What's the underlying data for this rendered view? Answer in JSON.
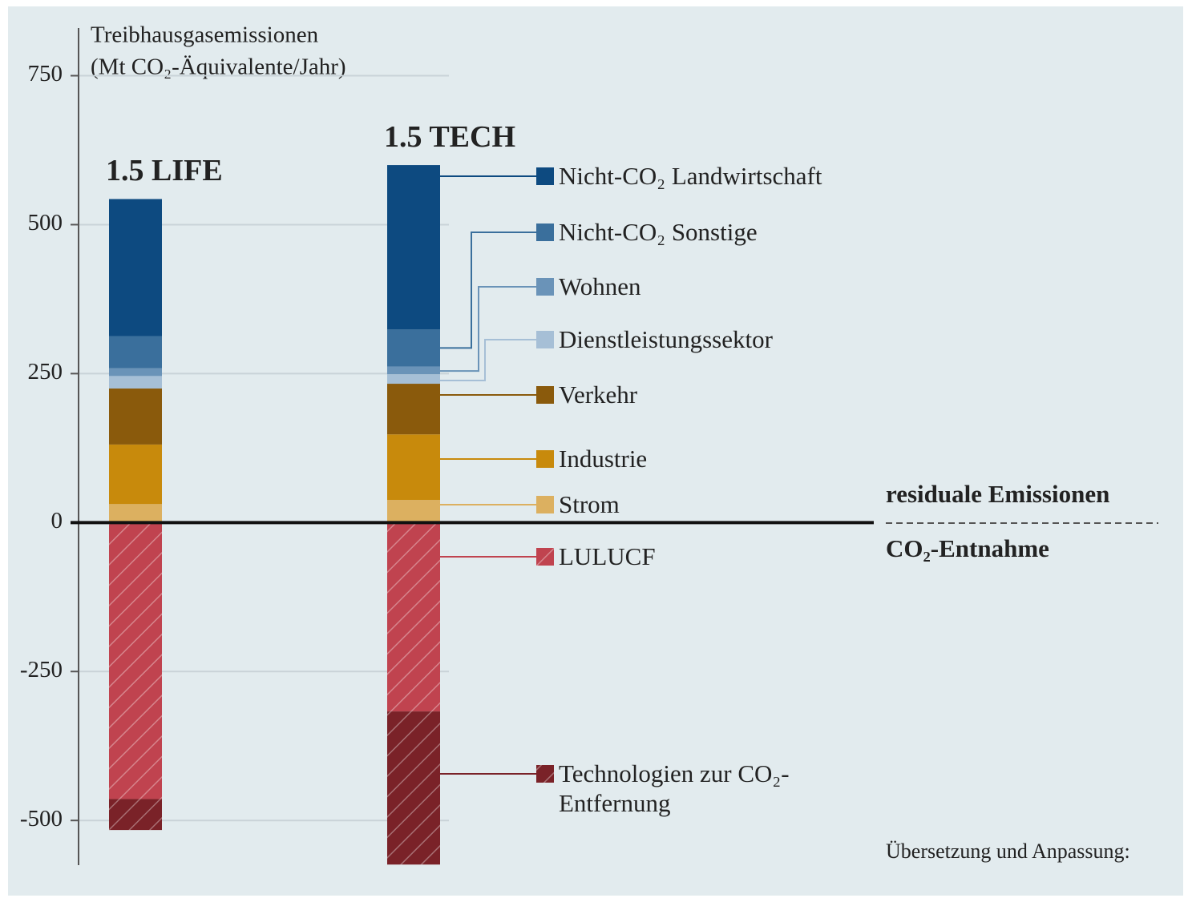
{
  "chart_data": {
    "type": "stacked-bar",
    "y_label_lines": [
      "Treibhausgasemissionen",
      "(Mt CO₂-Äquivalente/Jahr)"
    ],
    "categories": [
      "1.5 LIFE",
      "1.5 TECH"
    ],
    "series": [
      {
        "name": "Strom",
        "color": "#dcb060",
        "values": [
          31,
          38
        ]
      },
      {
        "name": "Industrie",
        "color": "#c88a0c",
        "values": [
          100,
          110
        ]
      },
      {
        "name": "Verkehr",
        "color": "#8a5a0c",
        "values": [
          94,
          85
        ]
      },
      {
        "name": "Dienstleistungssektor",
        "color": "#a6bfd6",
        "values": [
          21,
          16
        ]
      },
      {
        "name": "Wohnen",
        "color": "#6a93b8",
        "values": [
          13,
          13
        ]
      },
      {
        "name": "Nicht-CO₂ Sonstige",
        "color": "#3a6f9c",
        "values": [
          54,
          62
        ]
      },
      {
        "name": "Nicht-CO₂ Landwirtschaft",
        "color": "#0d4a80",
        "values": [
          230,
          276
        ]
      },
      {
        "name": "LULUCF",
        "color": "#c0434f",
        "hatch": true,
        "values": [
          -464,
          -317
        ]
      },
      {
        "name": "Technologien zur CO₂-Entfernung",
        "color": "#7a2228",
        "hatch": true,
        "values": [
          -52,
          -257
        ]
      }
    ],
    "ylim": [
      -575,
      830
    ],
    "yticks": [
      -500,
      -250,
      0,
      250,
      500,
      750
    ],
    "grid": true,
    "annotations": [
      "residuale Emissionen",
      "CO₂-Entnahme",
      "Übersetzung und Anpassung:"
    ]
  }
}
